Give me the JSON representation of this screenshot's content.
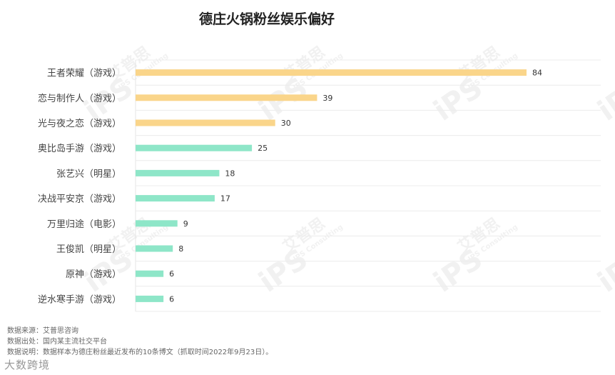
{
  "chart_data": {
    "type": "bar",
    "orientation": "horizontal",
    "title": "德庄火锅粉丝娱乐偏好",
    "categories": [
      "王者荣耀（游戏）",
      "恋与制作人（游戏）",
      "光与夜之恋（游戏）",
      "奥比岛手游（游戏）",
      "张艺兴（明星）",
      "决战平安京（游戏）",
      "万里归途（电影）",
      "王俊凯（明星）",
      "原神（游戏）",
      "逆水寒手游（游戏）"
    ],
    "values": [
      84,
      39,
      30,
      25,
      18,
      17,
      9,
      8,
      6,
      6
    ],
    "bar_colors": [
      "#fad58a",
      "#fad58a",
      "#fad58a",
      "#8ee6c8",
      "#8ee6c8",
      "#8ee6c8",
      "#8ee6c8",
      "#8ee6c8",
      "#8ee6c8",
      "#8ee6c8"
    ],
    "xlim": [
      0,
      100
    ],
    "grid": true,
    "legend": "none"
  },
  "watermark": {
    "text": "艾普思",
    "sub": "IPS Consulting",
    "logo": "iPS"
  },
  "footer": {
    "source": "数据来源：艾普思咨询",
    "origin": "数据出处：国内某主流社交平台",
    "note": "数据说明：数据样本为德庄粉丝最近发布的10条博文（抓取时间2022年9月23日）。"
  },
  "brand": "大数跨境"
}
